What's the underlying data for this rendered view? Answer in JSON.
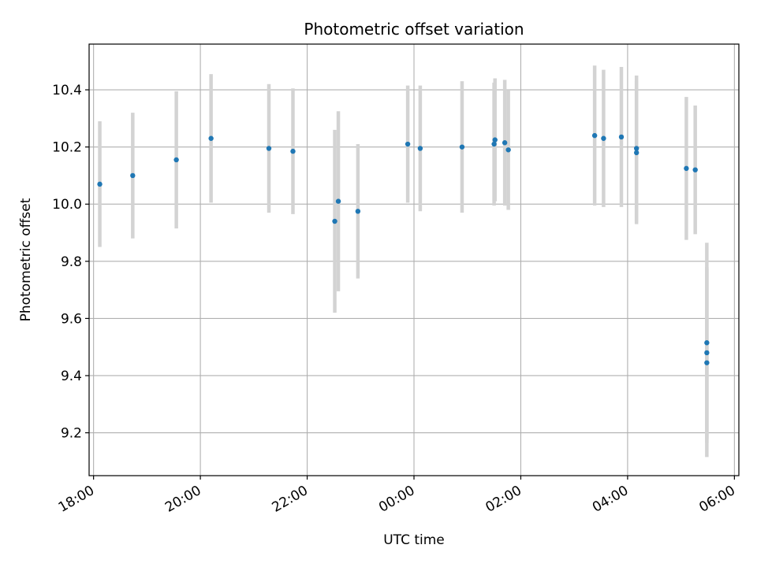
{
  "chart_data": {
    "type": "scatter",
    "title": "Photometric offset variation",
    "xlabel": "UTC time",
    "ylabel": "Photometric offset",
    "x_axis_kind": "time",
    "xlim": [
      "17:55",
      "06:05"
    ],
    "ylim": [
      9.05,
      10.56
    ],
    "xticks": [
      {
        "time": "18:00",
        "label": "18:00"
      },
      {
        "time": "20:00",
        "label": "20:00"
      },
      {
        "time": "22:00",
        "label": "22:00"
      },
      {
        "time": "00:00",
        "label": "00:00"
      },
      {
        "time": "02:00",
        "label": "02:00"
      },
      {
        "time": "04:00",
        "label": "04:00"
      },
      {
        "time": "06:00",
        "label": "06:00"
      }
    ],
    "yticks": [
      {
        "value": 9.2,
        "label": "9.2"
      },
      {
        "value": 9.4,
        "label": "9.4"
      },
      {
        "value": 9.6,
        "label": "9.6"
      },
      {
        "value": 9.8,
        "label": "9.8"
      },
      {
        "value": 10.0,
        "label": "10.0"
      },
      {
        "value": 10.2,
        "label": "10.2"
      },
      {
        "value": 10.4,
        "label": "10.4"
      }
    ],
    "grid": true,
    "colors": {
      "points": "#1f77b4",
      "errorbars": "#d3d3d3",
      "grid": "#b0b0b0"
    },
    "points": [
      {
        "time": "18:07",
        "y": 10.07,
        "err": 0.22
      },
      {
        "time": "18:44",
        "y": 10.1,
        "err": 0.22
      },
      {
        "time": "19:33",
        "y": 10.155,
        "err": 0.24
      },
      {
        "time": "20:12",
        "y": 10.23,
        "err": 0.225
      },
      {
        "time": "21:17",
        "y": 10.195,
        "err": 0.225
      },
      {
        "time": "21:44",
        "y": 10.185,
        "err": 0.22
      },
      {
        "time": "22:31",
        "y": 9.94,
        "err": 0.32
      },
      {
        "time": "22:35",
        "y": 10.01,
        "err": 0.315
      },
      {
        "time": "22:57",
        "y": 9.975,
        "err": 0.235
      },
      {
        "time": "23:53",
        "y": 10.21,
        "err": 0.205
      },
      {
        "time": "00:07",
        "y": 10.195,
        "err": 0.22
      },
      {
        "time": "00:54",
        "y": 10.2,
        "err": 0.23
      },
      {
        "time": "01:30",
        "y": 10.21,
        "err": 0.215
      },
      {
        "time": "01:31",
        "y": 10.225,
        "err": 0.215
      },
      {
        "time": "01:42",
        "y": 10.215,
        "err": 0.22
      },
      {
        "time": "01:46",
        "y": 10.19,
        "err": 0.21
      },
      {
        "time": "03:23",
        "y": 10.24,
        "err": 0.245
      },
      {
        "time": "03:33",
        "y": 10.23,
        "err": 0.24
      },
      {
        "time": "03:53",
        "y": 10.235,
        "err": 0.245
      },
      {
        "time": "04:10",
        "y": 10.195,
        "err": 0.255
      },
      {
        "time": "04:10",
        "y": 10.18,
        "err": 0.25
      },
      {
        "time": "05:06",
        "y": 10.125,
        "err": 0.25
      },
      {
        "time": "05:16",
        "y": 10.12,
        "err": 0.225
      },
      {
        "time": "05:29",
        "y": 9.515,
        "err": 0.35
      },
      {
        "time": "05:29",
        "y": 9.48,
        "err": 0.3
      },
      {
        "time": "05:29",
        "y": 9.445,
        "err": 0.33
      }
    ]
  }
}
